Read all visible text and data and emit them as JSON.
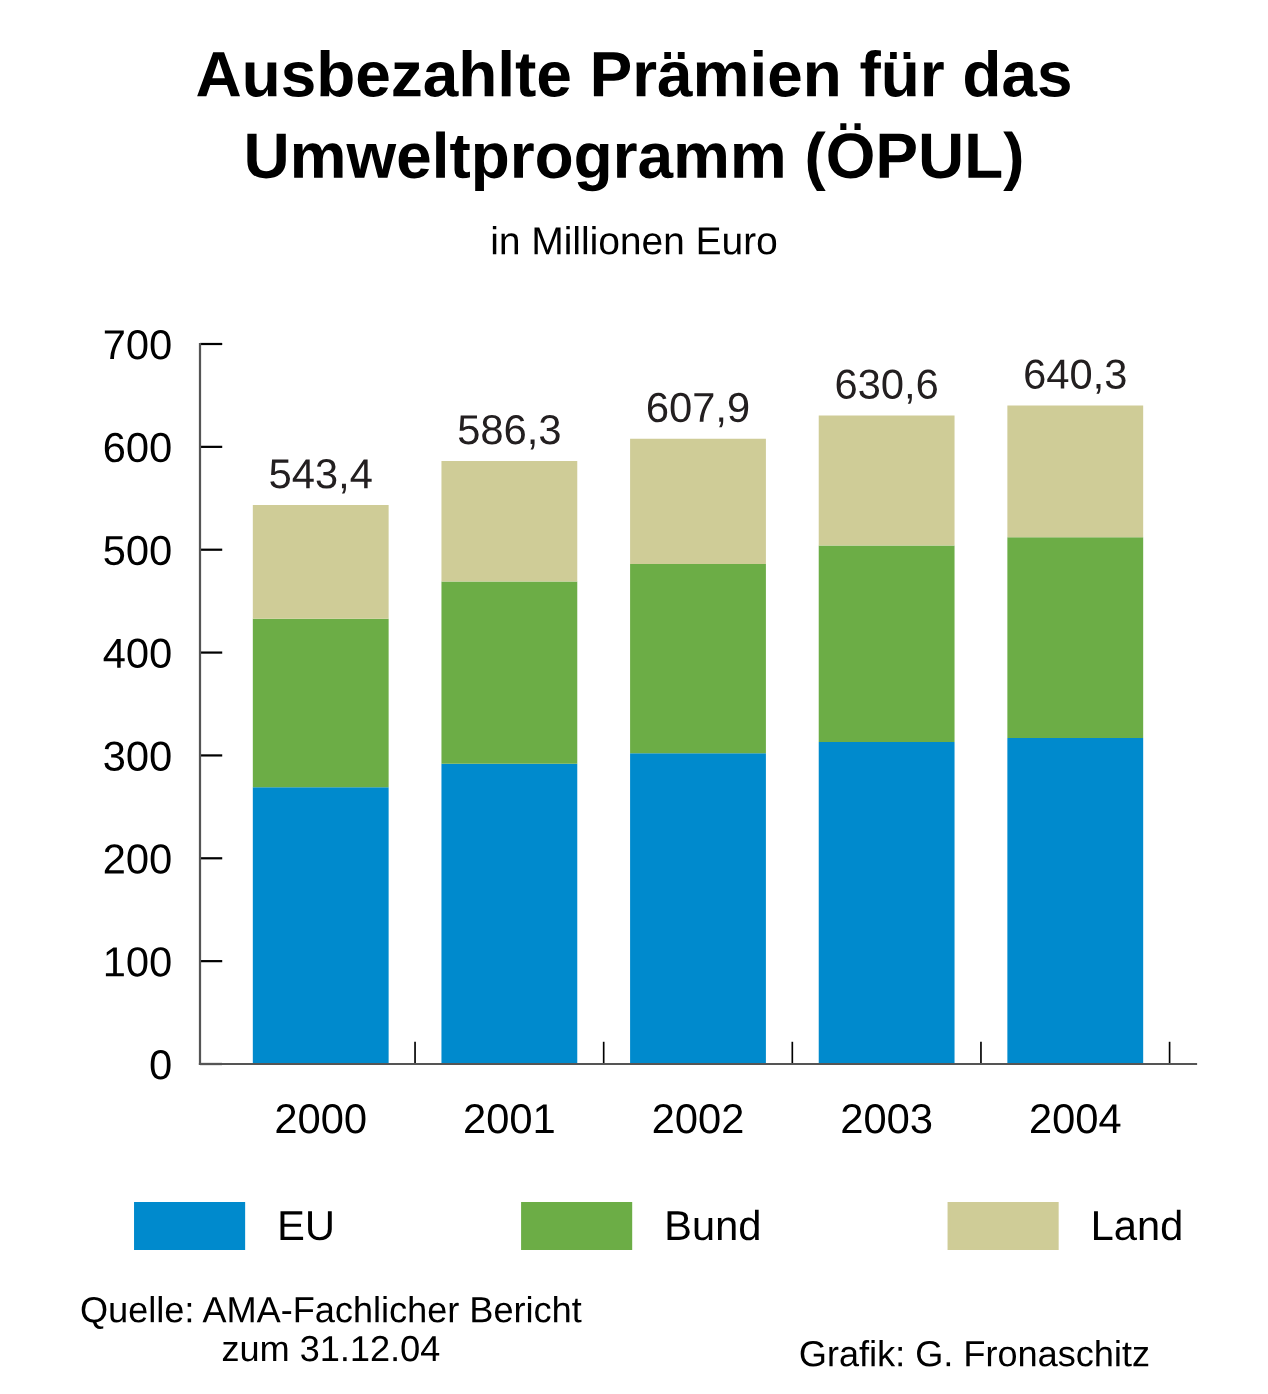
{
  "chart_data": {
    "type": "bar",
    "stacked": true,
    "title": "Ausbezahlte Prämien für das\nUmweltprogramm (ÖPUL)",
    "subtitle": "in Millionen Euro",
    "categories": [
      "2000",
      "2001",
      "2002",
      "2003",
      "2004"
    ],
    "series": [
      {
        "name": "EU",
        "color": "#008acd",
        "values": [
          269,
          292,
          302,
          313,
          317
        ]
      },
      {
        "name": "Bund",
        "color": "#6cad46",
        "values": [
          164,
          177,
          184,
          191,
          195
        ]
      },
      {
        "name": "Land",
        "color": "#cfcc97",
        "values": [
          110.4,
          117.3,
          121.9,
          126.6,
          128.3
        ]
      }
    ],
    "totals": [
      "543,4",
      "586,3",
      "607,9",
      "630,6",
      "640,3"
    ],
    "ylim": [
      0,
      700
    ],
    "yticks": [
      0,
      100,
      200,
      300,
      400,
      500,
      600,
      700
    ],
    "grid": false,
    "legend": "bottom",
    "annotations": [
      "Quelle: AMA-Fachlicher Bericht\nzum 31.12.04",
      "Grafik: G. Fronaschitz"
    ]
  }
}
